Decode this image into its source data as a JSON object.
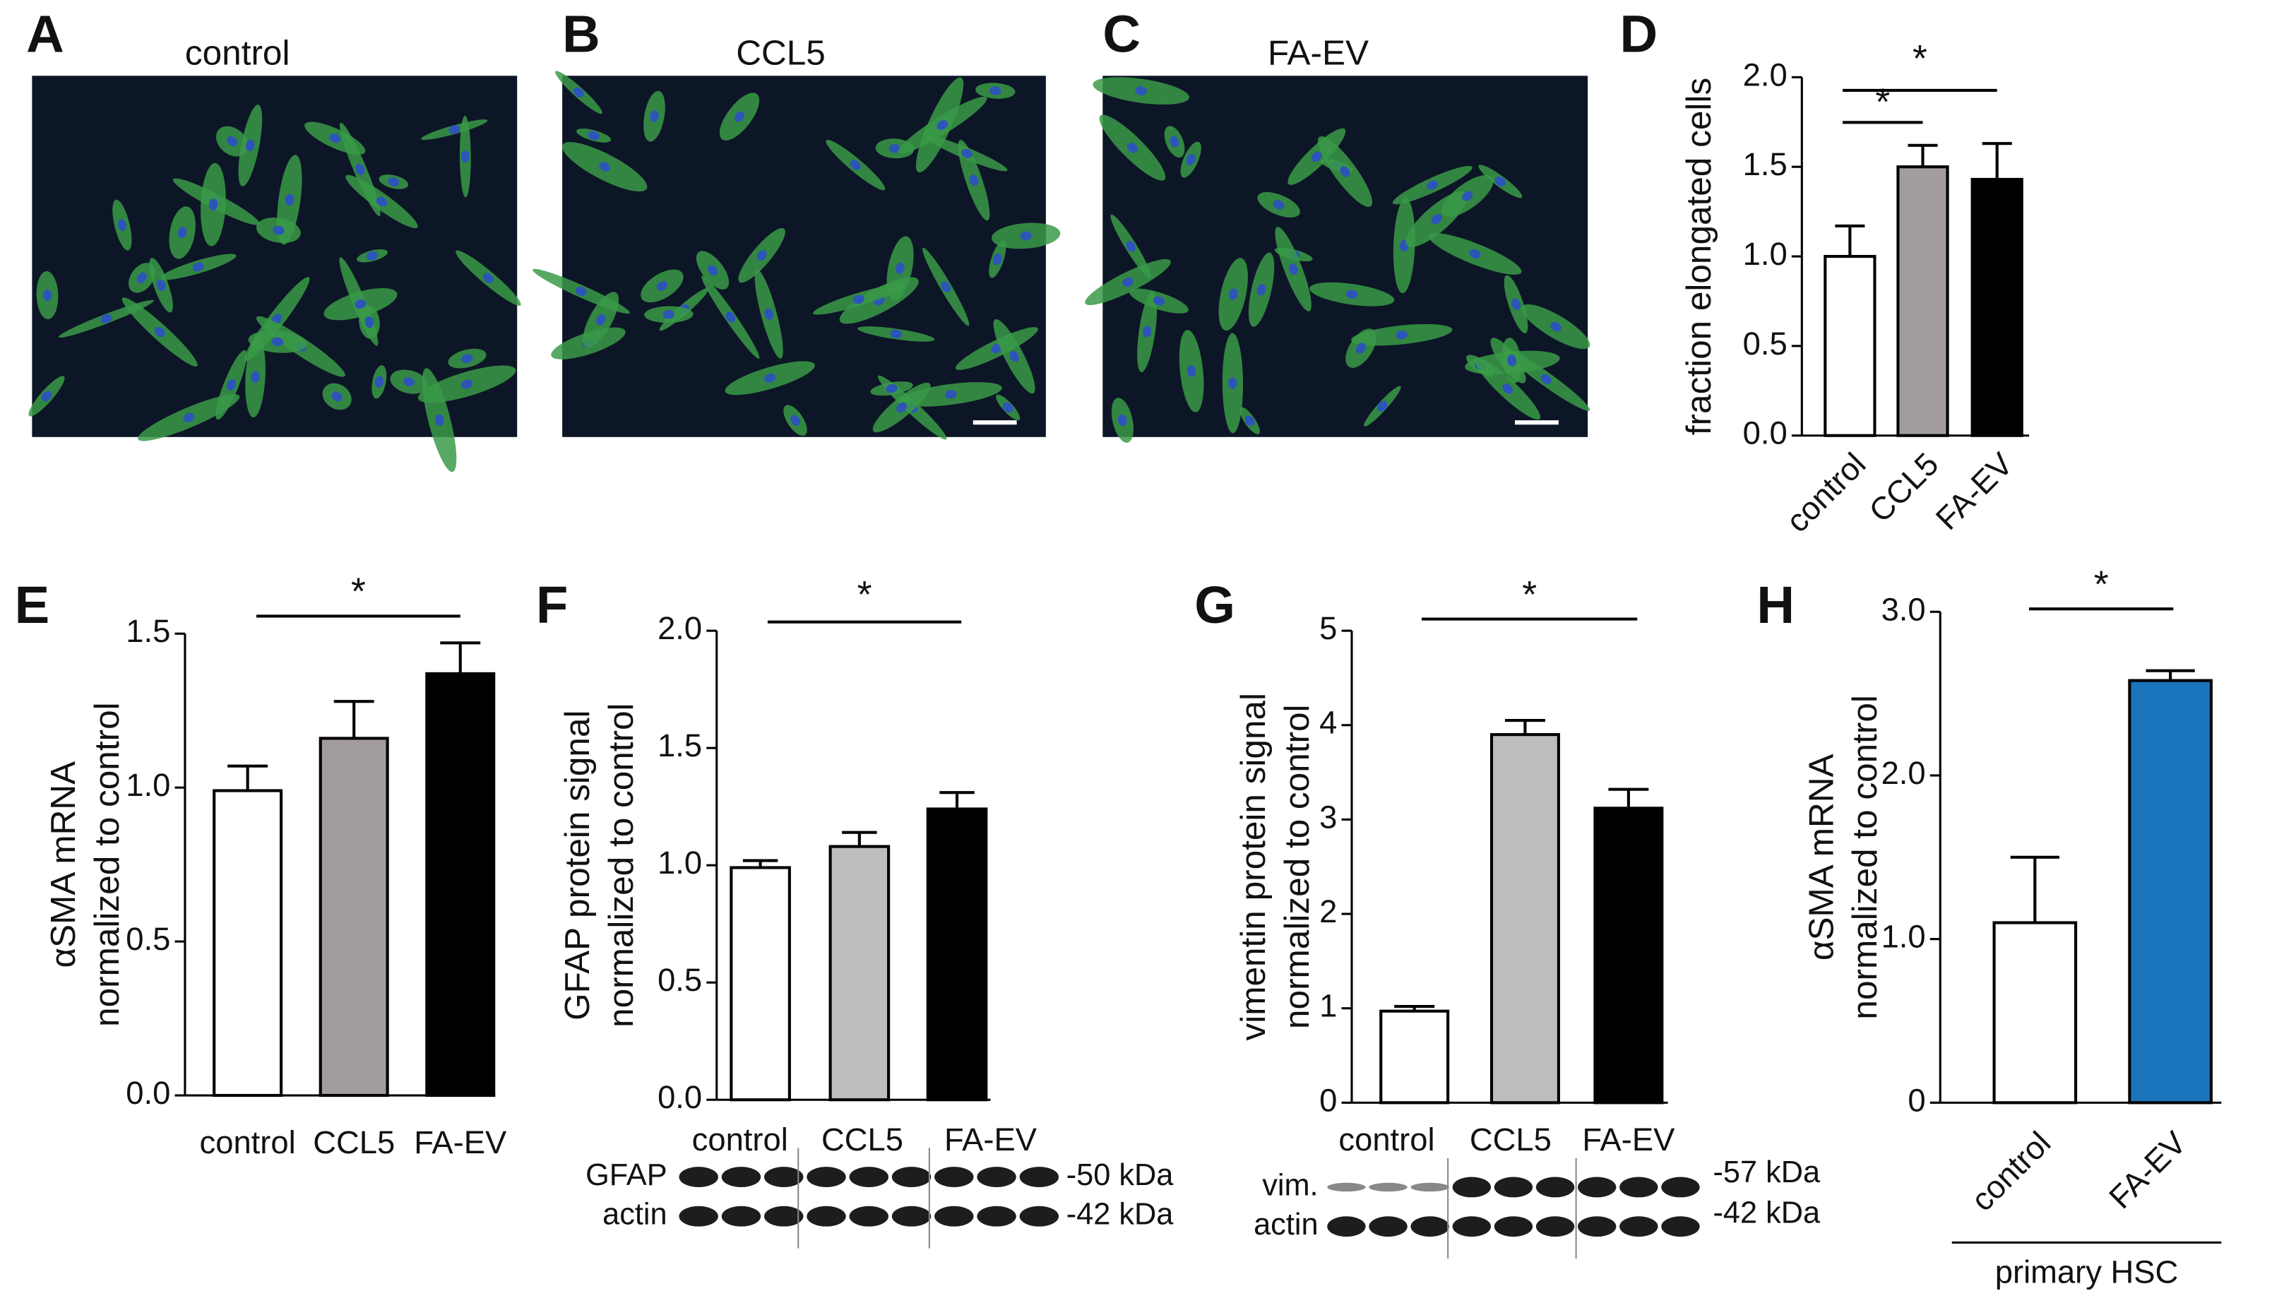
{
  "images": [
    {
      "label": "A",
      "title": "control"
    },
    {
      "label": "B",
      "title": "CCL5"
    },
    {
      "label": "C",
      "title": "FA-EV"
    }
  ],
  "chart_data": [
    {
      "type": "bar",
      "panel_label": "D",
      "ylabel": [
        "fraction elongated cells"
      ],
      "categories": [
        "control",
        "CCL5",
        "FA-EV"
      ],
      "values": [
        1.0,
        1.5,
        1.43
      ],
      "errors": [
        0.17,
        0.12,
        0.2
      ],
      "colors": [
        "#ffffff",
        "#a29c9c",
        "#000000"
      ],
      "ylim": [
        0,
        2
      ],
      "yticks": [
        {
          "value": 0,
          "label": "0.0"
        },
        {
          "value": 0.5,
          "label": "0.5"
        },
        {
          "value": 1,
          "label": "1.0"
        },
        {
          "value": 1.5,
          "label": "1.5"
        },
        {
          "value": 2,
          "label": "2.0"
        }
      ],
      "annotations": [
        "*",
        "*"
      ]
    },
    {
      "type": "bar",
      "panel_label": "E",
      "ylabel": [
        "αSMA mRNA",
        "normalized to control"
      ],
      "categories": [
        "control",
        "CCL5",
        "FA-EV"
      ],
      "values": [
        0.99,
        1.16,
        1.37
      ],
      "errors": [
        0.08,
        0.12,
        0.1
      ],
      "colors": [
        "#ffffff",
        "#a29c9c",
        "#000000"
      ],
      "ylim": [
        0,
        1.5
      ],
      "yticks": [
        {
          "value": 0,
          "label": "0.0"
        },
        {
          "value": 0.5,
          "label": "0.5"
        },
        {
          "value": 1,
          "label": "1.0"
        },
        {
          "value": 1.5,
          "label": "1.5"
        }
      ],
      "annotations": [
        "*"
      ]
    },
    {
      "type": "bar",
      "panel_label": "F",
      "ylabel": [
        "GFAP protein signal",
        "normalized to control"
      ],
      "categories": [
        "control",
        "CCL5",
        "FA-EV"
      ],
      "values": [
        0.99,
        1.08,
        1.24
      ],
      "errors": [
        0.03,
        0.06,
        0.07
      ],
      "colors": [
        "#ffffff",
        "#bcbdbf",
        "#000000"
      ],
      "ylim": [
        0,
        2
      ],
      "yticks": [
        {
          "value": 0,
          "label": "0.0"
        },
        {
          "value": 0.5,
          "label": "0.5"
        },
        {
          "value": 1,
          "label": "1.0"
        },
        {
          "value": 1.5,
          "label": "1.5"
        },
        {
          "value": 2,
          "label": "2.0"
        }
      ],
      "annotations": [
        "*"
      ]
    },
    {
      "type": "bar",
      "panel_label": "G",
      "ylabel": [
        "vimentin protein signal",
        "normalized to control"
      ],
      "categories": [
        "control",
        "CCL5",
        "FA-EV"
      ],
      "values": [
        0.97,
        3.9,
        3.12
      ],
      "errors": [
        0.05,
        0.15,
        0.2
      ],
      "colors": [
        "#ffffff",
        "#bcbdbf",
        "#000000"
      ],
      "ylim": [
        0,
        5
      ],
      "yticks": [
        0,
        1,
        2,
        3,
        4,
        5
      ],
      "annotations": [
        "*"
      ]
    },
    {
      "type": "bar",
      "panel_label": "H",
      "ylabel": [
        "αSMA mRNA",
        "normalized to control"
      ],
      "xlabel": "primary HSC",
      "categories": [
        "control",
        "FA-EV"
      ],
      "values": [
        1.1,
        2.58
      ],
      "errors": [
        0.4,
        0.06
      ],
      "colors": [
        "#ffffff",
        "#1b75bc"
      ],
      "ylim": [
        0,
        3
      ],
      "yticks": [
        0,
        {
          "value": 1,
          "label": "1.0"
        },
        {
          "value": 2,
          "label": "2.0"
        },
        {
          "value": 3,
          "label": "3.0"
        }
      ],
      "annotations": [
        "*"
      ]
    }
  ],
  "blots": [
    {
      "rows": [
        "GFAP",
        "actin"
      ],
      "sizes": [
        "-50 kDa",
        "-42 kDa"
      ]
    },
    {
      "rows": [
        "vim.",
        "actin"
      ],
      "sizes": [
        "-57 kDa",
        "-42 kDa"
      ]
    }
  ]
}
